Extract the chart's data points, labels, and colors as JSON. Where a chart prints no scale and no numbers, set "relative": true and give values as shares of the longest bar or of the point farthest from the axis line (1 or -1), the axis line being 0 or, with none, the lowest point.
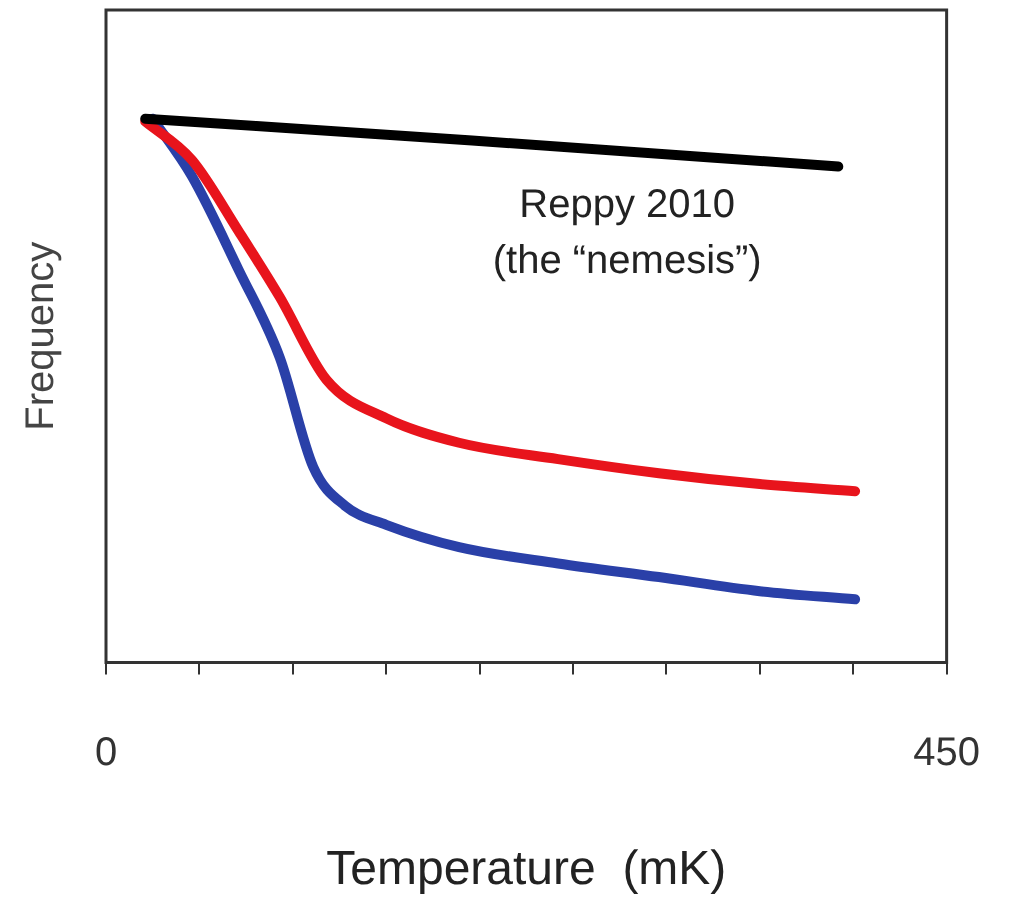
{
  "chart_data": {
    "type": "line",
    "xlabel": "Temperature  (mK)",
    "ylabel": "Frequency",
    "relative": true,
    "xlim": [
      0,
      450
    ],
    "xticks": [
      0,
      {
        "value": 50,
        "label": null
      },
      {
        "value": 100,
        "label": null
      },
      {
        "value": 150,
        "label": null
      },
      {
        "value": 200,
        "label": null
      },
      {
        "value": 250,
        "label": null
      },
      {
        "value": 300,
        "label": null
      },
      {
        "value": 350,
        "label": null
      },
      {
        "value": 400,
        "label": null
      },
      450
    ],
    "grid": false,
    "legend": false,
    "annotations": [
      "Reppy 2010",
      "(the “nemesis”)"
    ],
    "series": [
      {
        "color": "#000000",
        "x": [
          21,
          196,
          392
        ],
        "values": [
          1.0,
          0.96,
          0.912
        ]
      },
      {
        "color": "#e8141c",
        "x": [
          21,
          46,
          71,
          93,
          118,
          150,
          189,
          242,
          296,
          350,
          401
        ],
        "values": [
          0.995,
          0.924,
          0.793,
          0.672,
          0.52,
          0.449,
          0.404,
          0.374,
          0.348,
          0.328,
          0.315
        ]
      },
      {
        "color": "#2a40a8",
        "x": [
          25,
          46,
          71,
          93,
          111,
          128,
          150,
          189,
          242,
          296,
          350,
          401
        ],
        "values": [
          1.0,
          0.894,
          0.722,
          0.561,
          0.359,
          0.288,
          0.253,
          0.212,
          0.182,
          0.157,
          0.131,
          0.116
        ]
      }
    ]
  }
}
